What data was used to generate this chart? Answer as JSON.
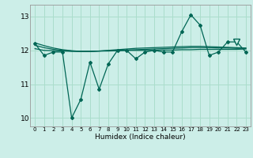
{
  "xlabel": "Humidex (Indice chaleur)",
  "bg_color": "#cceee8",
  "grid_color": "#aaddcc",
  "line_color": "#006655",
  "xlim": [
    -0.5,
    23.5
  ],
  "ylim": [
    9.75,
    13.35
  ],
  "yticks": [
    10,
    11,
    12,
    13
  ],
  "xticks": [
    0,
    1,
    2,
    3,
    4,
    5,
    6,
    7,
    8,
    9,
    10,
    11,
    12,
    13,
    14,
    15,
    16,
    17,
    18,
    19,
    20,
    21,
    22,
    23
  ],
  "main_data": [
    12.2,
    11.85,
    11.95,
    11.95,
    10.0,
    10.55,
    11.65,
    10.85,
    11.6,
    12.0,
    12.0,
    11.75,
    11.95,
    12.0,
    11.95,
    11.95,
    12.55,
    13.05,
    12.75,
    11.85,
    11.95,
    12.25,
    12.25,
    11.95
  ],
  "smooth_line1": [
    12.05,
    12.0,
    11.99,
    11.98,
    11.97,
    11.97,
    11.97,
    11.98,
    11.98,
    11.99,
    12.0,
    12.0,
    12.0,
    12.0,
    12.01,
    12.01,
    12.02,
    12.02,
    12.03,
    12.03,
    12.03,
    12.03,
    12.03,
    12.04
  ],
  "smooth_line2": [
    12.15,
    12.08,
    12.03,
    12.0,
    11.98,
    11.97,
    11.97,
    11.98,
    11.99,
    12.0,
    12.01,
    12.02,
    12.03,
    12.04,
    12.05,
    12.06,
    12.07,
    12.08,
    12.08,
    12.08,
    12.07,
    12.07,
    12.06,
    12.06
  ],
  "smooth_line3": [
    12.22,
    12.14,
    12.07,
    12.02,
    11.99,
    11.97,
    11.97,
    11.98,
    12.0,
    12.02,
    12.04,
    12.06,
    12.07,
    12.08,
    12.09,
    12.1,
    12.11,
    12.12,
    12.12,
    12.11,
    12.1,
    12.09,
    12.08,
    12.07
  ]
}
